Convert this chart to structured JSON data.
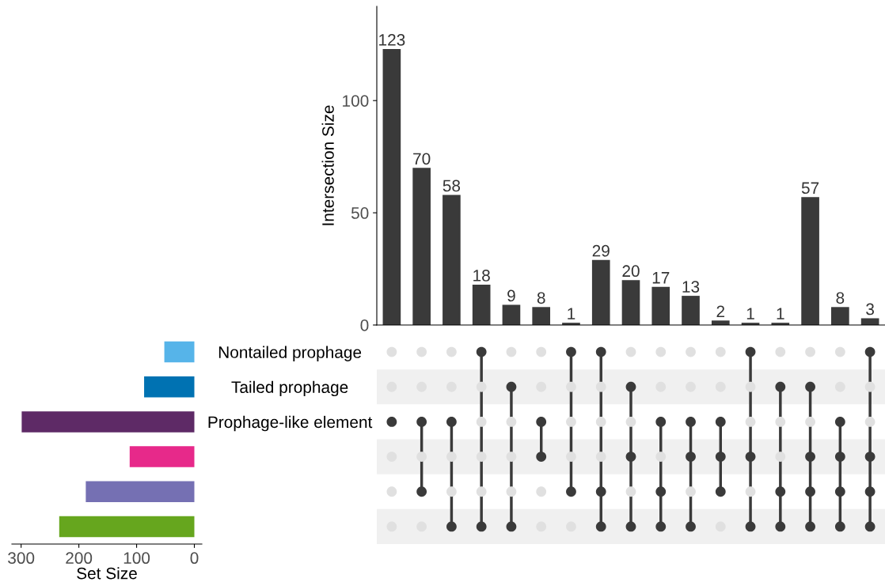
{
  "chart_data": [
    {
      "type": "bar",
      "ylabel": "Intersection Size",
      "categories": [
        null,
        null,
        null,
        null,
        null,
        null,
        null,
        null,
        null,
        null,
        null,
        null,
        null,
        null,
        null,
        null,
        null
      ],
      "values": [
        123,
        70,
        58,
        18,
        9,
        8,
        1,
        29,
        20,
        17,
        13,
        2,
        1,
        1,
        57,
        8,
        3
      ],
      "color": "#3a3a3a",
      "ylim": [
        0,
        142
      ],
      "yticks": [
        0,
        50,
        100
      ],
      "data_labels": true,
      "grid": false,
      "tick_labels": "y"
    },
    {
      "type": "bar",
      "orientation": "horizontal",
      "xlabel": "Set Size",
      "categories": [
        "Nontailed prophage",
        "Tailed prophage",
        "Prophage-like element",
        null,
        null,
        null
      ],
      "values": [
        52,
        87,
        299,
        112,
        188,
        234
      ],
      "colors": [
        "#56b4e9",
        "#0072b2",
        "#5e2a66",
        "#e7298a",
        "#7570b3",
        "#66a61e"
      ],
      "xlim": [
        316,
        -13
      ],
      "xticks": [
        300,
        200,
        100,
        0
      ],
      "grid": false
    }
  ]
}
